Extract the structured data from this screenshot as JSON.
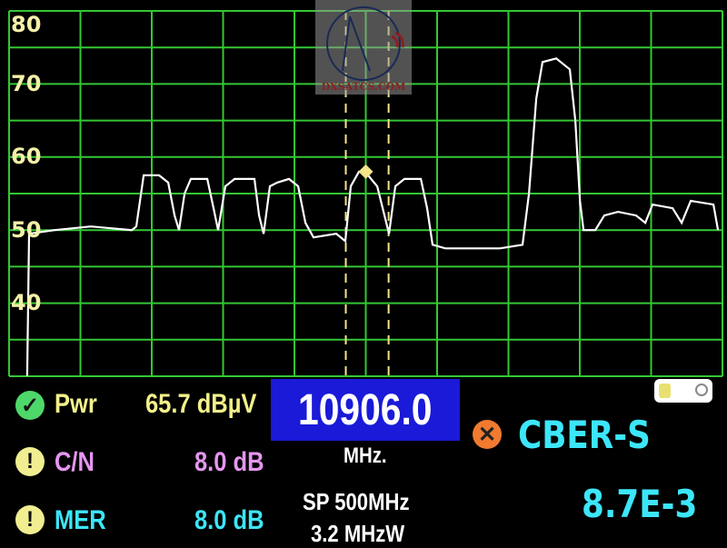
{
  "chart_data": {
    "type": "line",
    "title": "",
    "xlabel": "",
    "ylabel": "",
    "ylim": [
      30,
      80
    ],
    "xlim": [
      10656,
      11156
    ],
    "yticks": [
      "80",
      "70",
      "60",
      "50",
      "40"
    ],
    "grid": true,
    "trace_color": "#ffffff",
    "grid_color": "#34c734",
    "series": [
      {
        "x": [
          10668.7,
          10670.0,
          10687.9,
          10713.3,
          10742.0,
          10745.2,
          10750.3,
          10761.1,
          10767.5,
          10772.0,
          10775.1,
          10779.0,
          10783.4,
          10794.9,
          10799.3,
          10802.5,
          10807.6,
          10814.0,
          10828.0,
          10831.2,
          10834.4,
          10838.8,
          10843.9,
          10852.2,
          10858.6,
          10863.7,
          10869.4,
          10885.3,
          10891.7,
          10895.5,
          10901.2,
          10907.6,
          10914.0,
          10919.1,
          10922.3,
          10926.7,
          10933.1,
          10944.6,
          10949.0,
          10952.8,
          10961.8,
          10980.9,
          11000.0,
          11015.9,
          11020.4,
          11025.5,
          11029.9,
          11039.5,
          11049.0,
          11052.9,
          11056.1,
          11058.6,
          11066.9,
          11073.2,
          11082.8,
          11095.5,
          11101.9,
          11107.0,
          11121.0,
          11127.4,
          11133.8,
          11149.7,
          11152.9
        ],
        "y": [
          30,
          49.5,
          50,
          50.5,
          50,
          50.5,
          57.5,
          57.5,
          56.5,
          52,
          50,
          55,
          57,
          57,
          53,
          50,
          56,
          57,
          57,
          52,
          49.5,
          56,
          56.5,
          57,
          56,
          51,
          49,
          49.5,
          48.5,
          56,
          58,
          57.5,
          56,
          52,
          49.5,
          56,
          57,
          57,
          53,
          48,
          47.5,
          47.5,
          47.5,
          48,
          55,
          68,
          73,
          73.5,
          72,
          65,
          54,
          50,
          50,
          52,
          52.5,
          52,
          51,
          53.5,
          53,
          51,
          54,
          53.5,
          50
        ]
      }
    ],
    "cursors_mhz": [
      10892,
      10922
    ],
    "marker": {
      "x": 10906,
      "y": 58,
      "color": "#f4e48a"
    }
  },
  "logo": "DXSATCS.COM",
  "readouts": {
    "pwr": {
      "label": "Pwr",
      "value": "65.7 dBµV",
      "status": "ok",
      "label_color": "#f4f08a",
      "value_color": "#f4f08a"
    },
    "cn": {
      "label": "C/N",
      "value": "8.0 dB",
      "status": "warning",
      "label_color": "#e596f0",
      "value_color": "#e596f0"
    },
    "mer": {
      "label": "MER",
      "value": "8.0 dB",
      "status": "warning",
      "label_color": "#3ce6f8",
      "value_color": "#3ce6f8"
    }
  },
  "frequency": {
    "value": "10906.0",
    "unit": "MHz."
  },
  "span": "SP 500MHz",
  "bandwidth": "3.2 MHzW",
  "cber": {
    "label": "CBER-S",
    "value": "8.7E-3",
    "status": "fail",
    "color": "#3ce6f8"
  },
  "battery_level": 0.45
}
